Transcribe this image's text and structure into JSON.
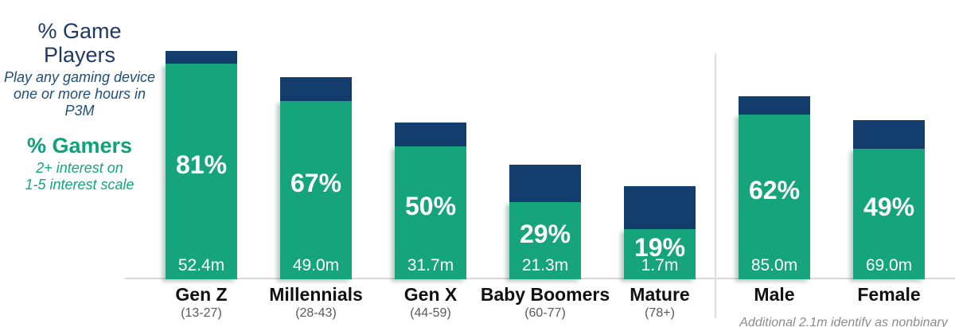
{
  "legend": {
    "players_title": "% Game Players",
    "players_subtitle_line1": "Play any gaming device",
    "players_subtitle_line2": "one or more hours in P3M",
    "players_color": "#1F3864",
    "gamers_title": "% Gamers",
    "gamers_subtitle_line1": "2+ interest on",
    "gamers_subtitle_line2": "1-5 interest scale",
    "gamers_color": "#0FA27A"
  },
  "footnote": "Additional 2.1m identify as nonbinary",
  "chart_data": {
    "type": "bar",
    "subtype": "overlaid-columns",
    "categories": [
      "Gen Z",
      "Millennials",
      "Gen X",
      "Baby Boomers",
      "Mature",
      "Male",
      "Female"
    ],
    "category_sublabels": [
      "(13-27)",
      "(28-43)",
      "(44-59)",
      "(60-77)",
      "(78+)",
      "",
      ""
    ],
    "series": [
      {
        "name": "% Game Players",
        "values": [
          86,
          76,
          59,
          43,
          35,
          69,
          60
        ],
        "color": "#123D6C",
        "label_suffix": "%"
      },
      {
        "name": "% Gamers",
        "values": [
          81,
          67,
          50,
          29,
          19,
          62,
          49
        ],
        "color": "#16A47C",
        "label_suffix": "%"
      }
    ],
    "population_labels": [
      "52.4m",
      "49.0m",
      "31.7m",
      "21.3m",
      "1.7m",
      "85.0m",
      "69.0m"
    ],
    "ylim": [
      0,
      100
    ],
    "grid": false,
    "legend_position": "left",
    "group_divider_after": "Mature",
    "axis_color": "#D9D9D9"
  }
}
